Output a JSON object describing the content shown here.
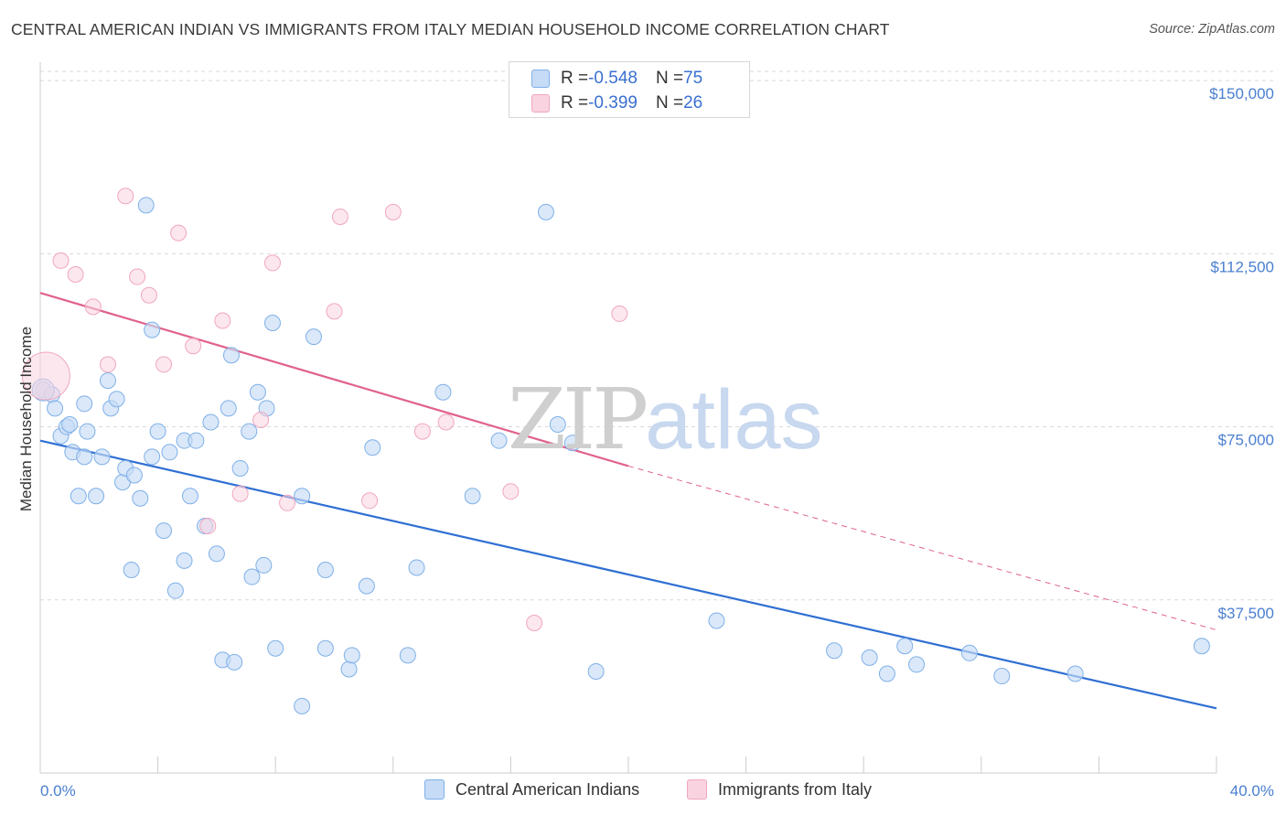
{
  "title": "CENTRAL AMERICAN INDIAN VS IMMIGRANTS FROM ITALY MEDIAN HOUSEHOLD INCOME CORRELATION CHART",
  "source": "Source: ZipAtlas.com",
  "watermark": {
    "zip": "ZIP",
    "atlas": "atlas"
  },
  "legend": {
    "rows": [
      {
        "r_label": "R = ",
        "r_value": "-0.548",
        "n_label": "N = ",
        "n_value": "75",
        "color": "#7fb0e8"
      },
      {
        "r_label": "R = ",
        "r_value": "-0.399",
        "n_label": "N = ",
        "n_value": "26",
        "color": "#f0a6bf"
      }
    ]
  },
  "chart_data": {
    "type": "scatter",
    "title": "CENTRAL AMERICAN INDIAN VS IMMIGRANTS FROM ITALY MEDIAN HOUSEHOLD INCOME CORRELATION CHART",
    "xlabel": "",
    "ylabel": "Median Household Income",
    "xlim": [
      0,
      40
    ],
    "ylim": [
      0,
      152000
    ],
    "x_tick_labels": [
      "0.0%",
      "40.0%"
    ],
    "y_ticks": [
      37500,
      75000,
      112500,
      150000
    ],
    "y_tick_labels": [
      "$37,500",
      "$75,000",
      "$112,500",
      "$150,000"
    ],
    "grid": true,
    "legend_position": "top-center",
    "series": [
      {
        "name": "Central American Indians",
        "color": "#7fb0e8",
        "line_color": "#2f6fd3",
        "trend": [
          [
            0,
            72000
          ],
          [
            40,
            14000
          ]
        ],
        "points": [
          [
            0.1,
            83000
          ],
          [
            0.4,
            82000
          ],
          [
            0.5,
            79000
          ],
          [
            0.7,
            73000
          ],
          [
            0.9,
            75000
          ],
          [
            1.0,
            75500
          ],
          [
            1.1,
            69500
          ],
          [
            1.3,
            60000
          ],
          [
            1.5,
            68500
          ],
          [
            1.5,
            80000
          ],
          [
            1.6,
            74000
          ],
          [
            1.9,
            60000
          ],
          [
            2.1,
            68500
          ],
          [
            2.3,
            85000
          ],
          [
            2.4,
            79000
          ],
          [
            2.6,
            81000
          ],
          [
            2.8,
            63000
          ],
          [
            2.9,
            66000
          ],
          [
            3.1,
            44000
          ],
          [
            3.2,
            64500
          ],
          [
            3.4,
            59500
          ],
          [
            3.6,
            123000
          ],
          [
            3.8,
            68500
          ],
          [
            3.8,
            96000
          ],
          [
            4.0,
            74000
          ],
          [
            4.2,
            52500
          ],
          [
            4.4,
            69500
          ],
          [
            4.6,
            39500
          ],
          [
            4.9,
            72000
          ],
          [
            4.9,
            46000
          ],
          [
            5.1,
            60000
          ],
          [
            5.3,
            72000
          ],
          [
            5.6,
            53500
          ],
          [
            5.8,
            76000
          ],
          [
            6.0,
            47500
          ],
          [
            6.2,
            24500
          ],
          [
            6.4,
            79000
          ],
          [
            6.5,
            90500
          ],
          [
            6.6,
            24000
          ],
          [
            6.8,
            66000
          ],
          [
            7.1,
            74000
          ],
          [
            7.2,
            42500
          ],
          [
            7.4,
            82500
          ],
          [
            7.6,
            45000
          ],
          [
            7.7,
            79000
          ],
          [
            7.9,
            97500
          ],
          [
            8.0,
            27000
          ],
          [
            8.9,
            14500
          ],
          [
            8.9,
            60000
          ],
          [
            9.3,
            94500
          ],
          [
            9.7,
            44000
          ],
          [
            9.7,
            27000
          ],
          [
            10.5,
            22500
          ],
          [
            10.6,
            25500
          ],
          [
            11.1,
            40500
          ],
          [
            11.3,
            70500
          ],
          [
            12.5,
            25500
          ],
          [
            12.8,
            44500
          ],
          [
            13.7,
            82500
          ],
          [
            14.7,
            60000
          ],
          [
            15.6,
            72000
          ],
          [
            17.2,
            121500
          ],
          [
            17.6,
            75500
          ],
          [
            18.1,
            71500
          ],
          [
            18.9,
            22000
          ],
          [
            23.0,
            33000
          ],
          [
            27.0,
            26500
          ],
          [
            28.2,
            25000
          ],
          [
            28.8,
            21500
          ],
          [
            29.4,
            27500
          ],
          [
            29.8,
            23500
          ],
          [
            31.6,
            26000
          ],
          [
            32.7,
            21000
          ],
          [
            35.2,
            21500
          ],
          [
            39.5,
            27500
          ]
        ],
        "big_point": [
          0.1,
          83000
        ]
      },
      {
        "name": "Immigrants from Italy",
        "color": "#f0a6bf",
        "line_color": "#e0628c",
        "trend": [
          [
            0,
            104000
          ],
          [
            20,
            66500
          ]
        ],
        "trend_dashed": [
          [
            20,
            66500
          ],
          [
            40,
            31000
          ]
        ],
        "points": [
          [
            0.2,
            86000
          ],
          [
            0.7,
            111000
          ],
          [
            1.2,
            108000
          ],
          [
            1.8,
            101000
          ],
          [
            2.3,
            88500
          ],
          [
            2.9,
            125000
          ],
          [
            3.3,
            107500
          ],
          [
            3.7,
            103500
          ],
          [
            4.2,
            88500
          ],
          [
            4.7,
            117000
          ],
          [
            5.2,
            92500
          ],
          [
            5.7,
            53500
          ],
          [
            6.2,
            98000
          ],
          [
            6.8,
            60500
          ],
          [
            7.5,
            76500
          ],
          [
            7.9,
            110500
          ],
          [
            8.4,
            58500
          ],
          [
            10.0,
            100000
          ],
          [
            10.2,
            120500
          ],
          [
            11.2,
            59000
          ],
          [
            12.0,
            121500
          ],
          [
            13.0,
            74000
          ],
          [
            13.8,
            76000
          ],
          [
            16.0,
            61000
          ],
          [
            16.8,
            32500
          ],
          [
            19.7,
            99500
          ]
        ]
      }
    ]
  },
  "bottom_legend": [
    {
      "label": "Central American Indians",
      "color": "#7fb0e8"
    },
    {
      "label": "Immigrants from Italy",
      "color": "#f0a6bf"
    }
  ]
}
